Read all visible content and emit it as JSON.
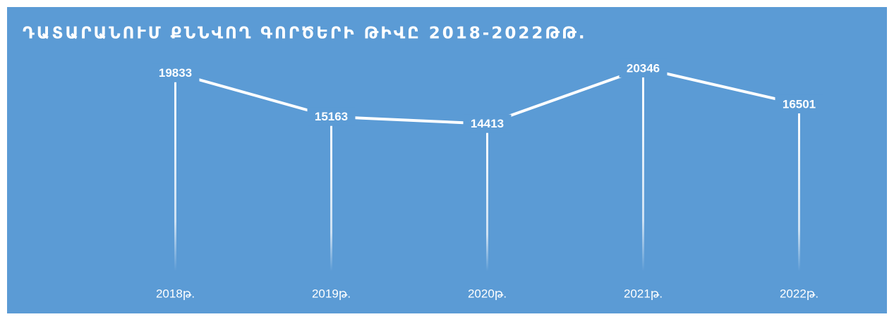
{
  "chart_data": {
    "type": "line",
    "title": "ԴԱՏԱՐԱՆՈՒՄ ՔՆՆՎՈՂ ԳՈՐԾԵՐԻ ԹԻՎԸ 2018-2022ԹԹ.",
    "categories": [
      "2018թ.",
      "2019թ.",
      "2020թ.",
      "2021թ.",
      "2022թ."
    ],
    "values": [
      19833,
      15163,
      14413,
      20346,
      16501
    ],
    "color": "#ffffff",
    "background": "#5b9bd5",
    "ylim": [
      0,
      22000
    ],
    "drop_lines": true
  }
}
